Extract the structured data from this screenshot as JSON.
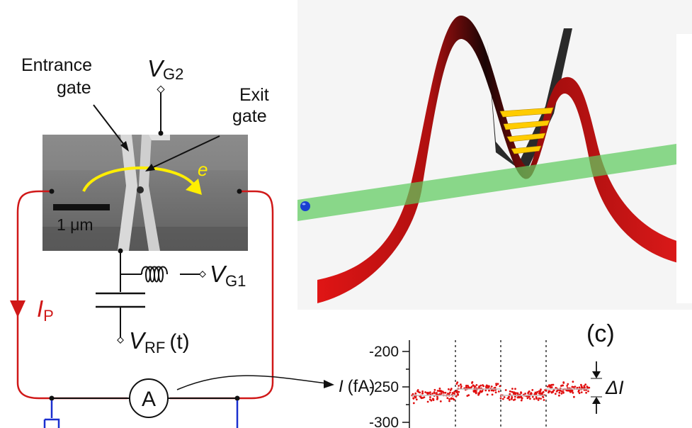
{
  "circuit": {
    "entrance_gate_line1": "Entrance",
    "entrance_gate_line2": "gate",
    "exit_gate_line1": "Exit",
    "exit_gate_line2": "gate",
    "vg2_main": "V",
    "vg2_sub": "G2",
    "vg1_main": "V",
    "vg1_sub": "G1",
    "vrf_main": "V",
    "vrf_sub": "RF",
    "vrf_arg": "(t)",
    "ip_main": "I",
    "ip_sub": "P",
    "electron_label": "e",
    "scale_bar_label": "1 μm",
    "ammeter_label": "A",
    "colors": {
      "current_path": "#d01818",
      "ground": "#1a2fcf",
      "electron_arrow": "#ffee00"
    }
  },
  "panel_c": {
    "label": "(c)",
    "ylabel_main": "I",
    "ylabel_unit": "(fA)",
    "delta_label": "ΔI",
    "chart_data": {
      "type": "scatter",
      "ylim": [
        -300,
        -200
      ],
      "yticks": [
        "-200",
        "-250",
        "-300"
      ],
      "ytick_values": [
        -200,
        -250,
        -300
      ],
      "segment_levels": [
        -262,
        -253,
        -262,
        -253
      ],
      "delta_i": 9,
      "marker_color": "#e01010"
    }
  },
  "pump_3d": {
    "colors": {
      "barrier": "#cc1111",
      "band": "#60cc60",
      "levels": "#ffcc00",
      "electron": "#1a3fd0"
    }
  }
}
